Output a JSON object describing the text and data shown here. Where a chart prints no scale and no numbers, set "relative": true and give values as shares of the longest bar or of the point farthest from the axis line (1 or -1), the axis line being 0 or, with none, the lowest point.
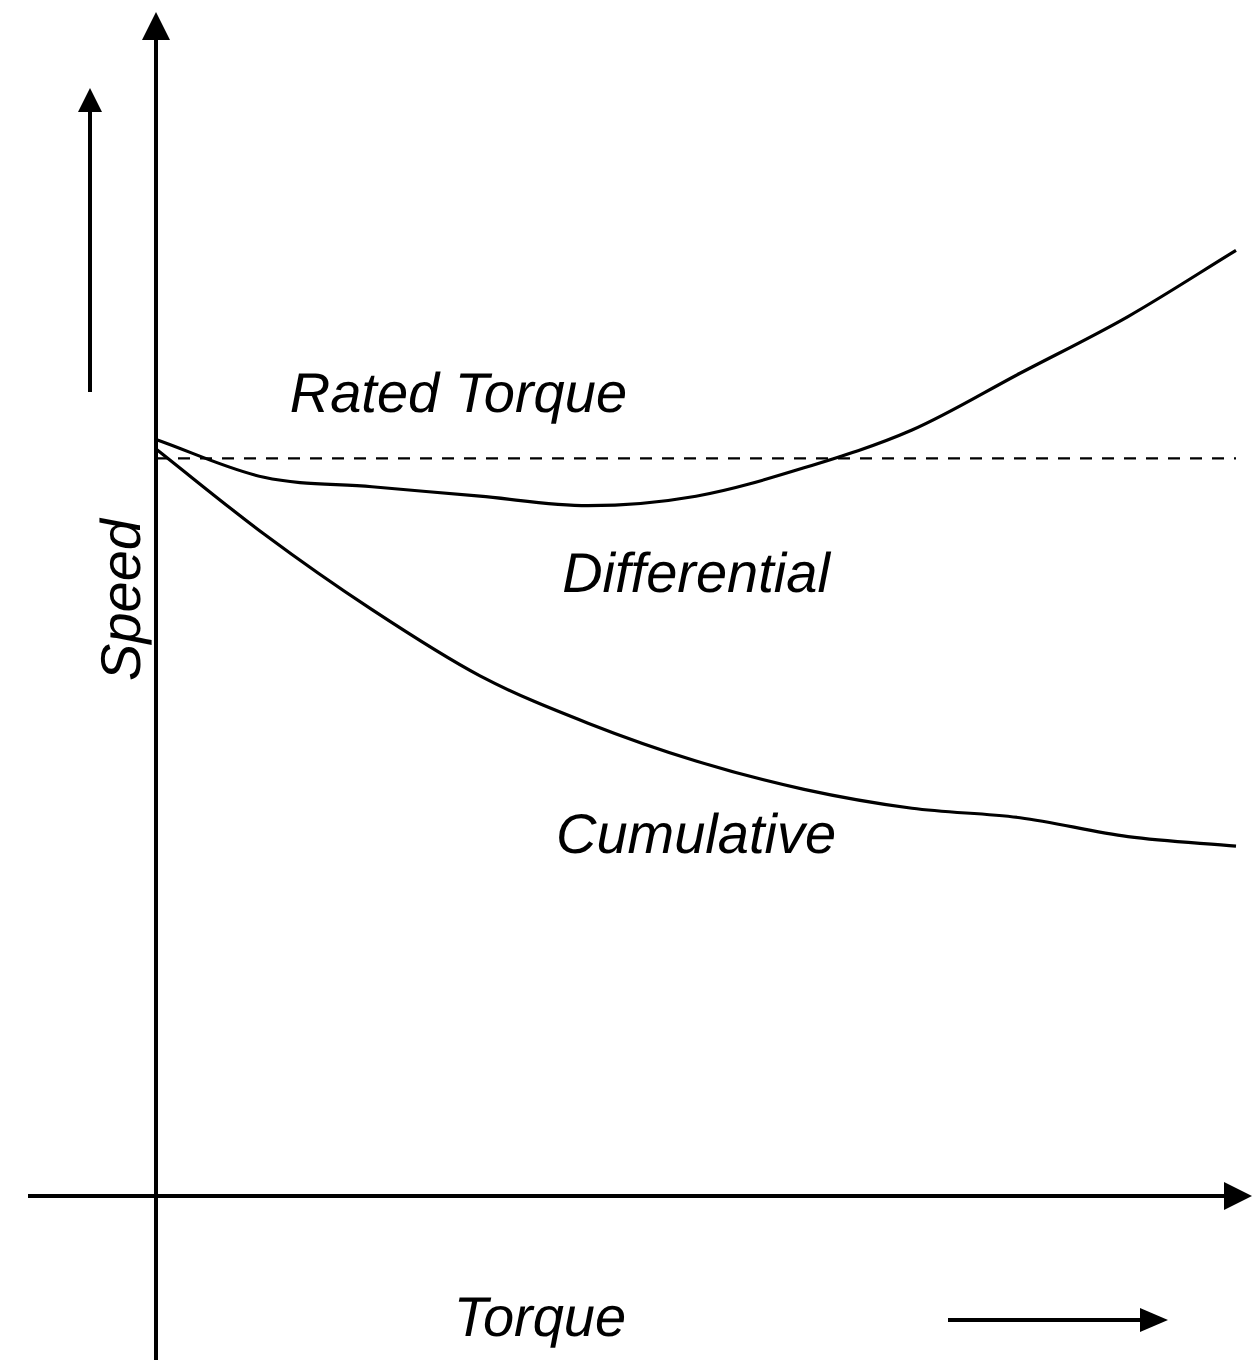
{
  "chart_data": {
    "type": "line",
    "xlabel": "Torque",
    "ylabel": "Speed",
    "relative": true,
    "categories": [
      null,
      null,
      null,
      null,
      null,
      null,
      null,
      null,
      null,
      null,
      null
    ],
    "series": [
      {
        "name": "Differential",
        "color": "#000000",
        "values": [
          0.8,
          0.76,
          0.75,
          0.74,
          0.73,
          0.74,
          0.77,
          0.81,
          0.87,
          0.93,
          1
        ]
      },
      {
        "name": "Cumulative",
        "color": "#000000",
        "values": [
          0.79,
          0.7,
          0.62,
          0.55,
          0.5,
          0.46,
          0.43,
          0.41,
          0.4,
          0.38,
          0.37
        ]
      }
    ],
    "ref_lines": [
      {
        "axis": "y",
        "value": 0.78,
        "label": "Rated Torque",
        "color": "#000000",
        "line_style": "dashed"
      }
    ],
    "marker": "none",
    "line_style": "solid"
  }
}
